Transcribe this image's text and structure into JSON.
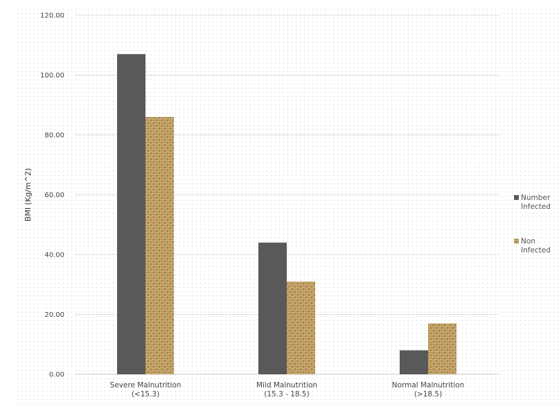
{
  "chart_data": {
    "type": "bar",
    "title": "",
    "xlabel": "",
    "ylabel": "BMI (Kg/m^2)",
    "ylim": [
      0,
      120
    ],
    "yticks": [
      "0.00",
      "20.00",
      "40.00",
      "60.00",
      "80.00",
      "100.00",
      "120.00"
    ],
    "grid": true,
    "legend_position": "right",
    "categories": [
      [
        "Severe Malnutrition",
        "(<15.3)"
      ],
      [
        "Mild Malnutrition",
        "(15.3 - 18.5)"
      ],
      [
        "Normal Malnutrition",
        "(>18.5)"
      ]
    ],
    "series": [
      {
        "name": [
          "Number",
          "Infected"
        ],
        "values": [
          107,
          44,
          8
        ],
        "color": "#595959",
        "fill": "solid"
      },
      {
        "name": [
          "Non",
          "Infected"
        ],
        "values": [
          86,
          31,
          17
        ],
        "color": "#b8935a",
        "fill": "burlap-texture"
      }
    ]
  }
}
